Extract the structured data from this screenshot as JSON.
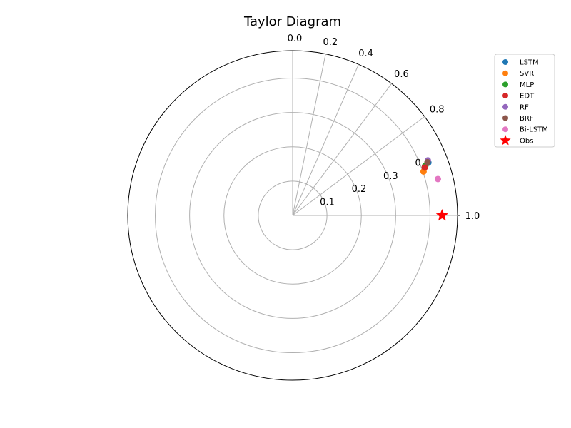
{
  "chart_data": {
    "type": "scatter",
    "subtype": "taylor-diagram",
    "title": "Taylor Diagram",
    "correlation_ticks": [
      "0.0",
      "0.2",
      "0.4",
      "0.6",
      "0.8",
      "1.0"
    ],
    "correlation_tick_values": [
      0.0,
      0.2,
      0.4,
      0.6,
      0.8,
      1.0
    ],
    "std_ticks": [
      "0.1",
      "0.2",
      "0.3",
      "0.4"
    ],
    "std_tick_values": [
      0.1,
      0.2,
      0.3,
      0.4
    ],
    "std_max": 0.48,
    "grid": true,
    "legend_position": "top-right",
    "series": [
      {
        "name": "LSTM",
        "color": "#1f77b4",
        "marker": "circle",
        "correlation": 0.932,
        "std": 0.424
      },
      {
        "name": "SVR",
        "color": "#ff7f0e",
        "marker": "circle",
        "correlation": 0.948,
        "std": 0.402
      },
      {
        "name": "MLP",
        "color": "#2ca02c",
        "marker": "circle",
        "correlation": 0.936,
        "std": 0.413
      },
      {
        "name": "EDT",
        "color": "#d62728",
        "marker": "circle",
        "correlation": 0.94,
        "std": 0.409
      },
      {
        "name": "RF",
        "color": "#9467bd",
        "marker": "circle",
        "correlation": 0.926,
        "std": 0.425
      },
      {
        "name": "BRF",
        "color": "#8c564b",
        "marker": "circle",
        "correlation": 0.93,
        "std": 0.422
      },
      {
        "name": "Bi-LSTM",
        "color": "#e377c2",
        "marker": "circle",
        "correlation": 0.97,
        "std": 0.436
      },
      {
        "name": "Obs",
        "color": "#ff0000",
        "marker": "star",
        "correlation": 1.0,
        "std": 0.435
      }
    ]
  }
}
